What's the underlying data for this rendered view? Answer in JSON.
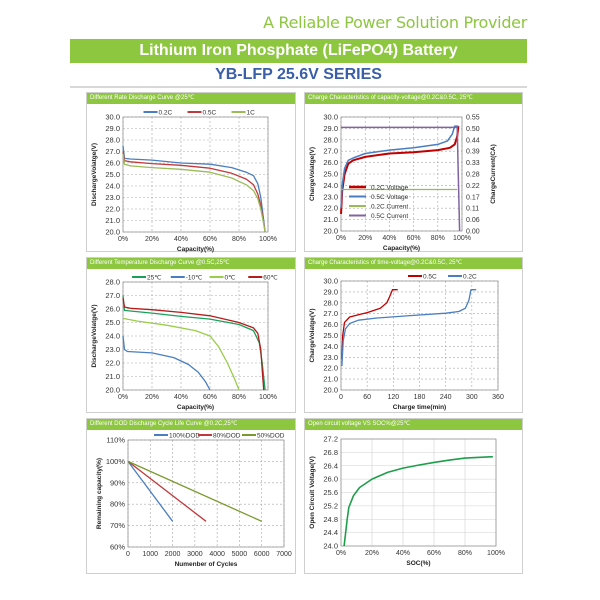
{
  "header": {
    "tagline": "A Reliable Power Solution Provider",
    "title": "Lithium Iron Phosphate (LiFePO4) Battery",
    "series": "YB-LFP 25.6V SERIES"
  },
  "colors": {
    "brand_green": "#8dc63f",
    "series_blue": "#3a5ea8"
  },
  "chart_data": [
    {
      "type": "line",
      "title": "Different Rate Discharge Curve @25℃",
      "xlabel": "Capacity(%)",
      "ylabel": "DischargeVolatge(V)",
      "xlim": [
        0,
        100
      ],
      "ylim": [
        20,
        30
      ],
      "xticks": [
        0,
        20,
        40,
        60,
        80,
        100
      ],
      "xtick_labels": [
        "0%",
        "20%",
        "40%",
        "60%",
        "80%",
        "100%"
      ],
      "yticks": [
        20,
        21,
        22,
        23,
        24,
        25,
        26,
        27,
        28,
        29,
        30
      ],
      "ytick_labels": [
        "20.0",
        "21.0",
        "22.0",
        "23.0",
        "24.0",
        "25.0",
        "26.0",
        "27.0",
        "28.0",
        "29.0",
        "30.0"
      ],
      "grid": "dashed",
      "legend": "top",
      "series": [
        {
          "name": "0.2C",
          "color": "#4a7ec0",
          "points": [
            [
              0,
              27.5
            ],
            [
              1,
              26.4
            ],
            [
              5,
              26.35
            ],
            [
              20,
              26.25
            ],
            [
              40,
              26.0
            ],
            [
              60,
              25.9
            ],
            [
              75,
              25.6
            ],
            [
              85,
              25.2
            ],
            [
              90,
              24.9
            ],
            [
              93,
              24.2
            ],
            [
              95,
              23.0
            ],
            [
              97,
              21.0
            ],
            [
              98,
              20.0
            ]
          ]
        },
        {
          "name": "0.5C",
          "color": "#c0393b",
          "points": [
            [
              0,
              27.0
            ],
            [
              1,
              26.2
            ],
            [
              5,
              26.1
            ],
            [
              20,
              25.95
            ],
            [
              40,
              25.8
            ],
            [
              60,
              25.55
            ],
            [
              75,
              25.1
            ],
            [
              85,
              24.6
            ],
            [
              90,
              24.1
            ],
            [
              93,
              23.3
            ],
            [
              95,
              22.3
            ],
            [
              97,
              20.8
            ],
            [
              98,
              20.0
            ]
          ]
        },
        {
          "name": "1C",
          "color": "#9bbb59",
          "points": [
            [
              0,
              26.8
            ],
            [
              1,
              25.9
            ],
            [
              5,
              25.75
            ],
            [
              20,
              25.6
            ],
            [
              40,
              25.45
            ],
            [
              60,
              25.2
            ],
            [
              75,
              24.7
            ],
            [
              85,
              24.1
            ],
            [
              90,
              23.6
            ],
            [
              93,
              22.9
            ],
            [
              95,
              22.0
            ],
            [
              97,
              20.7
            ],
            [
              98,
              20.0
            ]
          ]
        }
      ]
    },
    {
      "type": "line",
      "title": "Charge  Characteristics of capacity-voltage@0.2C&0.5C, 25℃",
      "xlabel": "Capacity(%)",
      "ylabel": "ChargeVolatge(V)",
      "y2label": "ChargeCurrent(CA)",
      "xlim": [
        0,
        100
      ],
      "ylim": [
        20,
        30
      ],
      "y2lim": [
        0,
        0.55
      ],
      "xticks": [
        0,
        20,
        40,
        60,
        80,
        100
      ],
      "xtick_labels": [
        "0%",
        "20%",
        "40%",
        "60%",
        "80%",
        "100%"
      ],
      "yticks": [
        20,
        21,
        22,
        23,
        24,
        25,
        26,
        27,
        28,
        29,
        30
      ],
      "ytick_labels": [
        "20.0",
        "21.0",
        "22.0",
        "23.0",
        "24.0",
        "25.0",
        "26.0",
        "27.0",
        "28.0",
        "29.0",
        "30.0"
      ],
      "y2tick_labels": [
        "0.00",
        "0.06",
        "0.11",
        "0.17",
        "0.22",
        "0.28",
        "0.33",
        "0.39",
        "0.44",
        "0.50",
        "0.55"
      ],
      "grid": "dashed",
      "legend": "bottom-left",
      "series": [
        {
          "name": "0.2C Voltage",
          "color": "#c00000",
          "width": 2,
          "points": [
            [
              0,
              21.5
            ],
            [
              1,
              23.5
            ],
            [
              3,
              25.0
            ],
            [
              6,
              25.9
            ],
            [
              10,
              26.2
            ],
            [
              20,
              26.5
            ],
            [
              40,
              26.8
            ],
            [
              60,
              26.9
            ],
            [
              80,
              27.1
            ],
            [
              90,
              27.3
            ],
            [
              94,
              27.6
            ],
            [
              96,
              28.3
            ],
            [
              97,
              29.2
            ]
          ]
        },
        {
          "name": "0.5C Voltage",
          "color": "#4a7ec0",
          "width": 1.5,
          "points": [
            [
              0,
              22.0
            ],
            [
              1,
              24.0
            ],
            [
              3,
              25.5
            ],
            [
              6,
              26.2
            ],
            [
              10,
              26.4
            ],
            [
              20,
              26.8
            ],
            [
              40,
              27.1
            ],
            [
              60,
              27.3
            ],
            [
              80,
              27.6
            ],
            [
              88,
              27.9
            ],
            [
              92,
              28.5
            ],
            [
              94,
              29.2
            ],
            [
              97,
              29.2
            ]
          ]
        },
        {
          "name": "0.2C Current",
          "color": "#9bbb59",
          "axis": "right",
          "width": 1.2,
          "points": [
            [
              0,
              0.2
            ],
            [
              96,
              0.2
            ]
          ]
        },
        {
          "name": "0.5C Current",
          "color": "#8064a2",
          "axis": "right",
          "width": 1.5,
          "points": [
            [
              0,
              0.5
            ],
            [
              96,
              0.5
            ],
            [
              98,
              0.0
            ]
          ]
        }
      ]
    },
    {
      "type": "line",
      "title": "Different Temperature Discharge Curve @0.5C,25℃",
      "xlabel": "Capacity(%)",
      "ylabel": "DischargeVolatge(V)",
      "xlim": [
        0,
        100
      ],
      "ylim": [
        20,
        28
      ],
      "xticks": [
        0,
        20,
        40,
        60,
        80,
        100
      ],
      "xtick_labels": [
        "0%",
        "20%",
        "40%",
        "60%",
        "80%",
        "100%"
      ],
      "yticks": [
        20,
        21,
        22,
        23,
        24,
        25,
        26,
        27,
        28
      ],
      "ytick_labels": [
        "20.0",
        "21.0",
        "22.0",
        "23.0",
        "24.0",
        "25.0",
        "26.0",
        "27.0",
        "28.0"
      ],
      "grid": "dashed",
      "legend": "top",
      "series": [
        {
          "name": "25℃",
          "color": "#1aa05a",
          "points": [
            [
              0,
              27.0
            ],
            [
              1,
              25.9
            ],
            [
              5,
              25.85
            ],
            [
              20,
              25.7
            ],
            [
              40,
              25.45
            ],
            [
              60,
              25.25
            ],
            [
              80,
              24.85
            ],
            [
              90,
              24.4
            ],
            [
              94,
              23.5
            ],
            [
              96,
              22.0
            ],
            [
              98,
              20.0
            ]
          ]
        },
        {
          "name": "-10℃",
          "color": "#4a7ec0",
          "points": [
            [
              0,
              24.0
            ],
            [
              1,
              23.0
            ],
            [
              3,
              22.85
            ],
            [
              20,
              22.75
            ],
            [
              35,
              22.4
            ],
            [
              45,
              21.9
            ],
            [
              52,
              21.3
            ],
            [
              57,
              20.6
            ],
            [
              60,
              20.0
            ]
          ]
        },
        {
          "name": "0℃",
          "color": "#9acd4a",
          "points": [
            [
              0,
              25.3
            ],
            [
              10,
              25.1
            ],
            [
              30,
              24.8
            ],
            [
              50,
              24.4
            ],
            [
              60,
              24.0
            ],
            [
              66,
              23.2
            ],
            [
              72,
              22.0
            ],
            [
              77,
              20.8
            ],
            [
              80,
              20.0
            ]
          ]
        },
        {
          "name": "60℃",
          "color": "#b51c1c",
          "points": [
            [
              0,
              26.8
            ],
            [
              1,
              26.15
            ],
            [
              5,
              26.05
            ],
            [
              20,
              25.95
            ],
            [
              40,
              25.75
            ],
            [
              60,
              25.5
            ],
            [
              80,
              25.0
            ],
            [
              90,
              24.6
            ],
            [
              93,
              24.2
            ],
            [
              95,
              23.0
            ],
            [
              96,
              21.5
            ],
            [
              97,
              20.0
            ]
          ]
        }
      ]
    },
    {
      "type": "line",
      "title": "Charge  Characteristics of time-voltage@0.2C&0.5C, 25℃",
      "xlabel": "Charge time(min)",
      "ylabel": "ChargeVolatge(V)",
      "xlim": [
        0,
        360
      ],
      "ylim": [
        20,
        30
      ],
      "xticks": [
        0,
        60,
        120,
        180,
        240,
        300,
        360
      ],
      "xtick_labels": [
        "0",
        "60",
        "120",
        "180",
        "240",
        "300",
        "360"
      ],
      "yticks": [
        20,
        21,
        22,
        23,
        24,
        25,
        26,
        27,
        28,
        29,
        30
      ],
      "ytick_labels": [
        "20.0",
        "21.0",
        "22.0",
        "23.0",
        "24.0",
        "25.0",
        "26.0",
        "27.0",
        "28.0",
        "29.0",
        "30.0"
      ],
      "grid": "dashed",
      "legend": "top-right",
      "series": [
        {
          "name": "0.5C",
          "color": "#c00000",
          "points": [
            [
              2,
              22.8
            ],
            [
              4,
              25.0
            ],
            [
              8,
              26.2
            ],
            [
              20,
              26.7
            ],
            [
              40,
              26.9
            ],
            [
              60,
              27.1
            ],
            [
              90,
              27.5
            ],
            [
              105,
              28.0
            ],
            [
              112,
              28.6
            ],
            [
              118,
              29.2
            ],
            [
              130,
              29.2
            ]
          ]
        },
        {
          "name": "0.2C",
          "color": "#4a7ec0",
          "points": [
            [
              2,
              22.2
            ],
            [
              5,
              24.5
            ],
            [
              10,
              25.6
            ],
            [
              20,
              26.1
            ],
            [
              40,
              26.4
            ],
            [
              80,
              26.6
            ],
            [
              150,
              26.8
            ],
            [
              240,
              27.05
            ],
            [
              270,
              27.2
            ],
            [
              285,
              27.5
            ],
            [
              293,
              28.2
            ],
            [
              298,
              29.2
            ],
            [
              310,
              29.2
            ]
          ]
        }
      ]
    },
    {
      "type": "line",
      "title": "Different DOD Discharge Cycle Life Curve @0.2C,25℃",
      "xlabel": "Numenber of Cycles",
      "ylabel": "Remaining capacity(%)",
      "xlim": [
        0,
        7000
      ],
      "ylim": [
        60,
        110
      ],
      "xticks": [
        0,
        1000,
        2000,
        3000,
        4000,
        5000,
        6000,
        7000
      ],
      "xtick_labels": [
        "0",
        "1000",
        "2000",
        "3000",
        "4000",
        "5000",
        "6000",
        "7000"
      ],
      "yticks": [
        60,
        70,
        80,
        90,
        100,
        110
      ],
      "ytick_labels": [
        "60%",
        "70%",
        "80%",
        "90%",
        "100%",
        "110%"
      ],
      "grid": "dashed",
      "legend": "top",
      "series": [
        {
          "name": "100%DOD",
          "color": "#4a7ec0",
          "points": [
            [
              0,
              100
            ],
            [
              2000,
              72
            ]
          ]
        },
        {
          "name": "80%DOD",
          "color": "#c0393b",
          "points": [
            [
              0,
              100
            ],
            [
              3500,
              72
            ]
          ]
        },
        {
          "name": "50%DOD",
          "color": "#7a9a2e",
          "points": [
            [
              0,
              100
            ],
            [
              6000,
              72
            ]
          ]
        }
      ]
    },
    {
      "type": "line",
      "title": "Open circuit voltage VS SOC%@25℃",
      "xlabel": "SOC(%)",
      "ylabel": "Open Circuit Voltage(V)",
      "xlim": [
        0,
        100
      ],
      "ylim": [
        24,
        27.2
      ],
      "xticks": [
        0,
        20,
        40,
        60,
        80,
        100
      ],
      "xtick_labels": [
        "0%",
        "20%",
        "40%",
        "60%",
        "80%",
        "100%"
      ],
      "yticks": [
        24,
        24.4,
        24.8,
        25.2,
        25.6,
        26,
        26.4,
        26.8,
        27.2
      ],
      "ytick_labels": [
        "24.0",
        "24.4",
        "24.8",
        "25.2",
        "25.6",
        "26.0",
        "26.4",
        "26.8",
        "27.2"
      ],
      "grid": "solid",
      "legend": "none",
      "series": [
        {
          "name": "OCV",
          "color": "#1e9e4a",
          "width": 1.6,
          "points": [
            [
              2,
              24.0
            ],
            [
              4,
              24.8
            ],
            [
              5,
              25.15
            ],
            [
              8,
              25.5
            ],
            [
              12,
              25.75
            ],
            [
              20,
              26.0
            ],
            [
              30,
              26.2
            ],
            [
              40,
              26.33
            ],
            [
              50,
              26.42
            ],
            [
              60,
              26.5
            ],
            [
              70,
              26.57
            ],
            [
              80,
              26.63
            ],
            [
              98,
              26.67
            ]
          ]
        }
      ]
    }
  ]
}
